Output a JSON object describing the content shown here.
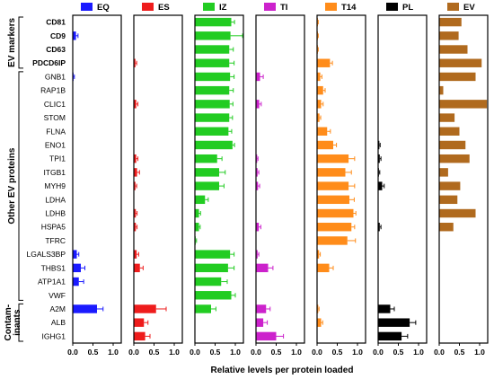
{
  "chart_data": {
    "type": "bar",
    "orientation": "horizontal",
    "xlabel": "Relative levels per protein loaded",
    "xlim": [
      0,
      1.2
    ],
    "xticks": [
      "0.0",
      "0.5",
      "1.0"
    ],
    "groups": [
      {
        "label": "EV markers",
        "rows": [
          "CD81",
          "CD9",
          "CD63",
          "PDCD6IP"
        ],
        "bold": true
      },
      {
        "label": "Other EV proteins",
        "rows": [
          "GNB1",
          "RAP1B",
          "CLIC1",
          "STOM",
          "FLNA",
          "ENO1",
          "TPI1",
          "ITGB1",
          "MYH9",
          "LDHA",
          "LDHB",
          "HSPA5",
          "TFRC",
          "LGALS3BP",
          "THBS1",
          "ATP1A1",
          "VWF"
        ],
        "bold": false
      },
      {
        "label": "Contam-\ninants",
        "label_lines": [
          "Contam-",
          "inants"
        ],
        "rows": [
          "A2M",
          "ALB",
          "IGHG1"
        ],
        "bold": false
      }
    ],
    "categories": [
      "CD81",
      "CD9",
      "CD63",
      "PDCD6IP",
      "GNB1",
      "RAP1B",
      "CLIC1",
      "STOM",
      "FLNA",
      "ENO1",
      "TPI1",
      "ITGB1",
      "MYH9",
      "LDHA",
      "LDHB",
      "HSPA5",
      "TFRC",
      "LGALS3BP",
      "THBS1",
      "ATP1A1",
      "VWF",
      "A2M",
      "ALB",
      "IGHG1"
    ],
    "series": [
      {
        "name": "EQ",
        "color": "#1a1aff",
        "values": [
          0.01,
          0.08,
          0.01,
          0.01,
          0.02,
          0.01,
          0.01,
          0.01,
          0.01,
          0.01,
          0.01,
          0.01,
          0.01,
          0.01,
          0.01,
          0.01,
          0.01,
          0.1,
          0.2,
          0.15,
          0.01,
          0.6,
          0.01,
          0.01
        ],
        "errors": [
          0.02,
          0.05,
          0.02,
          0.02,
          0.02,
          0.02,
          0.02,
          0.02,
          0.02,
          0.02,
          0.02,
          0.02,
          0.02,
          0.02,
          0.02,
          0.02,
          0.02,
          0.05,
          0.1,
          0.12,
          0.02,
          0.15,
          0.02,
          0.02
        ]
      },
      {
        "name": "ES",
        "color": "#ee1c1c",
        "values": [
          0.01,
          0.01,
          0.01,
          0.04,
          0.01,
          0.01,
          0.06,
          0.01,
          0.01,
          0.01,
          0.06,
          0.08,
          0.04,
          0.01,
          0.05,
          0.05,
          0.01,
          0.07,
          0.15,
          0.01,
          0.01,
          0.55,
          0.25,
          0.28
        ],
        "errors": [
          0.01,
          0.01,
          0.01,
          0.03,
          0.01,
          0.01,
          0.04,
          0.01,
          0.01,
          0.01,
          0.04,
          0.06,
          0.03,
          0.01,
          0.03,
          0.03,
          0.01,
          0.05,
          0.08,
          0.01,
          0.01,
          0.25,
          0.1,
          0.12
        ]
      },
      {
        "name": "IZ",
        "color": "#22cc22",
        "values": [
          0.9,
          0.88,
          0.85,
          0.85,
          0.87,
          0.85,
          0.86,
          0.85,
          0.83,
          0.93,
          0.55,
          0.6,
          0.6,
          0.25,
          0.1,
          0.1,
          0.02,
          0.87,
          0.82,
          0.65,
          0.9,
          0.4,
          0.01,
          0.01
        ],
        "errors": [
          0.08,
          0.3,
          0.1,
          0.12,
          0.1,
          0.1,
          0.08,
          0.08,
          0.08,
          0.05,
          0.12,
          0.15,
          0.12,
          0.08,
          0.04,
          0.03,
          0.02,
          0.1,
          0.15,
          0.15,
          0.1,
          0.12,
          0.01,
          0.01
        ]
      },
      {
        "name": "TI",
        "color": "#cc22cc",
        "values": [
          0.01,
          0.01,
          0.01,
          0.01,
          0.1,
          0.01,
          0.08,
          0.01,
          0.01,
          0.01,
          0.03,
          0.04,
          0.05,
          0.01,
          0.01,
          0.07,
          0.01,
          0.04,
          0.3,
          0.01,
          0.01,
          0.25,
          0.18,
          0.5
        ],
        "errors": [
          0.01,
          0.01,
          0.01,
          0.01,
          0.08,
          0.01,
          0.05,
          0.01,
          0.01,
          0.01,
          0.02,
          0.03,
          0.04,
          0.01,
          0.01,
          0.05,
          0.01,
          0.03,
          0.12,
          0.01,
          0.01,
          0.1,
          0.1,
          0.18
        ]
      },
      {
        "name": "T14",
        "color": "#ff8c1a",
        "values": [
          0.02,
          0.02,
          0.02,
          0.32,
          0.08,
          0.15,
          0.1,
          0.06,
          0.25,
          0.4,
          0.78,
          0.7,
          0.78,
          0.8,
          0.9,
          0.85,
          0.75,
          0.05,
          0.3,
          0.01,
          0.01,
          0.03,
          0.1,
          0.01
        ],
        "errors": [
          0.01,
          0.01,
          0.01,
          0.06,
          0.04,
          0.05,
          0.05,
          0.03,
          0.08,
          0.08,
          0.15,
          0.15,
          0.15,
          0.12,
          0.06,
          0.08,
          0.2,
          0.03,
          0.1,
          0.01,
          0.01,
          0.02,
          0.04,
          0.01
        ]
      },
      {
        "name": "PL",
        "color": "#000000",
        "values": [
          0.01,
          0.01,
          0.01,
          0.01,
          0.01,
          0.01,
          0.01,
          0.01,
          0.01,
          0.03,
          0.04,
          0.02,
          0.1,
          0.01,
          0.01,
          0.04,
          0.01,
          0.01,
          0.01,
          0.01,
          0.01,
          0.3,
          0.78,
          0.58
        ],
        "errors": [
          0.01,
          0.01,
          0.01,
          0.01,
          0.01,
          0.01,
          0.01,
          0.01,
          0.01,
          0.02,
          0.03,
          0.02,
          0.05,
          0.01,
          0.01,
          0.03,
          0.01,
          0.01,
          0.01,
          0.01,
          0.01,
          0.1,
          0.15,
          0.15
        ]
      },
      {
        "name": "EV",
        "color": "#b06a1e",
        "values": [
          0.55,
          0.48,
          0.7,
          1.05,
          0.9,
          0.1,
          1.18,
          0.38,
          0.5,
          0.65,
          0.75,
          0.22,
          0.52,
          0.45,
          0.9,
          0.35,
          0.01,
          0.01,
          0.01,
          0.01,
          0.01,
          0.01,
          0.01,
          0.01
        ],
        "errors": [
          0.0,
          0.0,
          0.0,
          0.0,
          0.0,
          0.0,
          0.0,
          0.0,
          0.0,
          0.0,
          0.0,
          0.0,
          0.0,
          0.0,
          0.0,
          0.0,
          0.0,
          0.0,
          0.0,
          0.0,
          0.0,
          0.0,
          0.0,
          0.0
        ]
      }
    ],
    "legend_placement": "top of each panel",
    "grid": false
  }
}
